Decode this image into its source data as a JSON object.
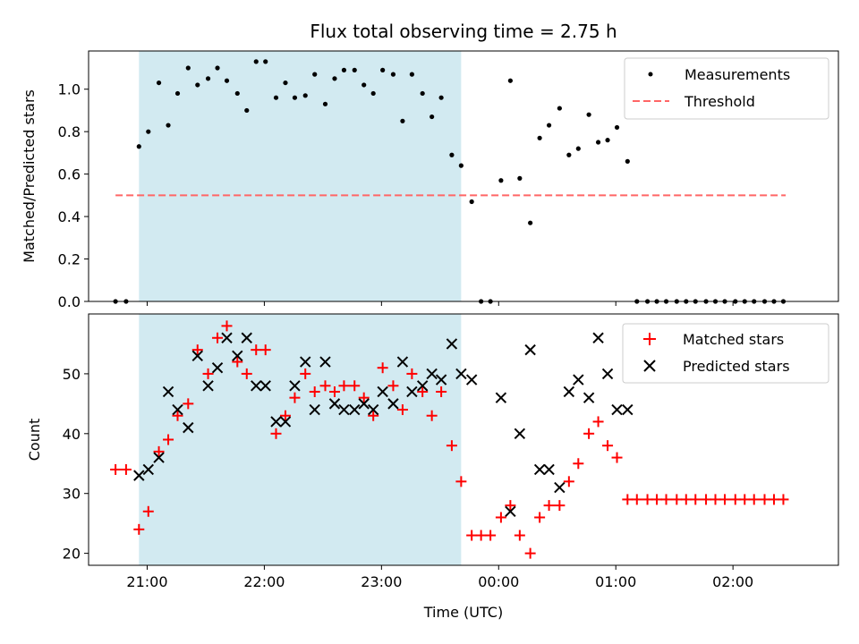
{
  "title": "Flux total observing time = 2.75 h",
  "xlabel": "Time (UTC)",
  "colors": {
    "shade": "#add8e6",
    "measurement": "#000000",
    "threshold": "#ff6666",
    "matched": "#ff0000",
    "predicted": "#000000"
  },
  "chart_data": [
    {
      "type": "scatter",
      "panel": "top",
      "ylabel": "Matched/Predicted stars",
      "ylim": [
        0,
        1.18
      ],
      "yticks": [
        0.0,
        0.2,
        0.4,
        0.6,
        0.8,
        1.0
      ],
      "ytick_labels": [
        "0.0",
        "0.2",
        "0.4",
        "0.6",
        "0.8",
        "1.0"
      ],
      "xlim_hours": [
        20.5,
        26.9
      ],
      "xticks_hours": [
        21,
        22,
        23,
        24,
        25,
        26
      ],
      "xtick_labels": [
        "21:00",
        "22:00",
        "23:00",
        "00:00",
        "01:00",
        "02:00"
      ],
      "shaded_interval_hours": [
        20.93,
        23.68
      ],
      "threshold": 0.5,
      "threshold_x_hours": [
        20.73,
        26.45
      ],
      "legend": [
        "Measurements",
        "Threshold"
      ],
      "legend_position": "upper right",
      "series": [
        {
          "name": "Measurements",
          "points": [
            [
              20.73,
              0.0
            ],
            [
              20.82,
              0.0
            ],
            [
              20.93,
              0.73
            ],
            [
              21.01,
              0.8
            ],
            [
              21.1,
              1.03
            ],
            [
              21.18,
              0.83
            ],
            [
              21.26,
              0.98
            ],
            [
              21.35,
              1.1
            ],
            [
              21.43,
              1.02
            ],
            [
              21.52,
              1.05
            ],
            [
              21.6,
              1.1
            ],
            [
              21.68,
              1.04
            ],
            [
              21.77,
              0.98
            ],
            [
              21.85,
              0.9
            ],
            [
              21.93,
              1.13
            ],
            [
              22.01,
              1.13
            ],
            [
              22.1,
              0.96
            ],
            [
              22.18,
              1.03
            ],
            [
              22.26,
              0.96
            ],
            [
              22.35,
              0.97
            ],
            [
              22.43,
              1.07
            ],
            [
              22.52,
              0.93
            ],
            [
              22.6,
              1.05
            ],
            [
              22.68,
              1.09
            ],
            [
              22.77,
              1.09
            ],
            [
              22.85,
              1.02
            ],
            [
              22.93,
              0.98
            ],
            [
              23.01,
              1.09
            ],
            [
              23.1,
              1.07
            ],
            [
              23.18,
              0.85
            ],
            [
              23.26,
              1.07
            ],
            [
              23.35,
              0.98
            ],
            [
              23.43,
              0.87
            ],
            [
              23.51,
              0.96
            ],
            [
              23.6,
              0.69
            ],
            [
              23.68,
              0.64
            ],
            [
              23.77,
              0.47
            ],
            [
              23.85,
              0.0
            ],
            [
              23.93,
              0.0
            ],
            [
              24.02,
              0.57
            ],
            [
              24.1,
              1.04
            ],
            [
              24.18,
              0.58
            ],
            [
              24.27,
              0.37
            ],
            [
              24.35,
              0.77
            ],
            [
              24.43,
              0.83
            ],
            [
              24.52,
              0.91
            ],
            [
              24.6,
              0.69
            ],
            [
              24.68,
              0.72
            ],
            [
              24.77,
              0.88
            ],
            [
              24.85,
              0.75
            ],
            [
              24.93,
              0.76
            ],
            [
              25.01,
              0.82
            ],
            [
              25.1,
              0.66
            ],
            [
              25.18,
              0.0
            ],
            [
              25.27,
              0.0
            ],
            [
              25.35,
              0.0
            ],
            [
              25.43,
              0.0
            ],
            [
              25.52,
              0.0
            ],
            [
              25.6,
              0.0
            ],
            [
              25.68,
              0.0
            ],
            [
              25.77,
              0.0
            ],
            [
              25.85,
              0.0
            ],
            [
              25.93,
              0.0
            ],
            [
              26.02,
              0.0
            ],
            [
              26.1,
              0.0
            ],
            [
              26.18,
              0.0
            ],
            [
              26.27,
              0.0
            ],
            [
              26.35,
              0.0
            ],
            [
              26.43,
              0.0
            ]
          ]
        }
      ]
    },
    {
      "type": "scatter",
      "panel": "bottom",
      "ylabel": "Count",
      "ylim": [
        18,
        60
      ],
      "yticks": [
        20,
        30,
        40,
        50
      ],
      "ytick_labels": [
        "20",
        "30",
        "40",
        "50"
      ],
      "xlim_hours": [
        20.5,
        26.9
      ],
      "xticks_hours": [
        21,
        22,
        23,
        24,
        25,
        26
      ],
      "xtick_labels": [
        "21:00",
        "22:00",
        "23:00",
        "00:00",
        "01:00",
        "02:00"
      ],
      "shaded_interval_hours": [
        20.93,
        23.68
      ],
      "legend": [
        "Matched stars",
        "Predicted stars"
      ],
      "legend_position": "upper right",
      "series": [
        {
          "name": "Matched stars",
          "marker": "+",
          "points": [
            [
              20.73,
              34
            ],
            [
              20.82,
              34
            ],
            [
              20.93,
              24
            ],
            [
              21.01,
              27
            ],
            [
              21.1,
              37
            ],
            [
              21.18,
              39
            ],
            [
              21.26,
              43
            ],
            [
              21.35,
              45
            ],
            [
              21.43,
              54
            ],
            [
              21.52,
              50
            ],
            [
              21.6,
              56
            ],
            [
              21.68,
              58
            ],
            [
              21.77,
              52
            ],
            [
              21.85,
              50
            ],
            [
              21.93,
              54
            ],
            [
              22.01,
              54
            ],
            [
              22.1,
              40
            ],
            [
              22.18,
              43
            ],
            [
              22.26,
              46
            ],
            [
              22.35,
              50
            ],
            [
              22.43,
              47
            ],
            [
              22.52,
              48
            ],
            [
              22.6,
              47
            ],
            [
              22.68,
              48
            ],
            [
              22.77,
              48
            ],
            [
              22.85,
              46
            ],
            [
              22.93,
              43
            ],
            [
              23.01,
              51
            ],
            [
              23.1,
              48
            ],
            [
              23.18,
              44
            ],
            [
              23.26,
              50
            ],
            [
              23.35,
              47
            ],
            [
              23.43,
              43
            ],
            [
              23.51,
              47
            ],
            [
              23.6,
              38
            ],
            [
              23.68,
              32
            ],
            [
              23.77,
              23
            ],
            [
              23.85,
              23
            ],
            [
              23.93,
              23
            ],
            [
              24.02,
              26
            ],
            [
              24.1,
              28
            ],
            [
              24.18,
              23
            ],
            [
              24.27,
              20
            ],
            [
              24.35,
              26
            ],
            [
              24.43,
              28
            ],
            [
              24.52,
              28
            ],
            [
              24.6,
              32
            ],
            [
              24.68,
              35
            ],
            [
              24.77,
              40
            ],
            [
              24.85,
              42
            ],
            [
              24.93,
              38
            ],
            [
              25.01,
              36
            ],
            [
              25.1,
              29
            ],
            [
              25.18,
              29
            ],
            [
              25.27,
              29
            ],
            [
              25.35,
              29
            ],
            [
              25.43,
              29
            ],
            [
              25.52,
              29
            ],
            [
              25.6,
              29
            ],
            [
              25.68,
              29
            ],
            [
              25.77,
              29
            ],
            [
              25.85,
              29
            ],
            [
              25.93,
              29
            ],
            [
              26.02,
              29
            ],
            [
              26.1,
              29
            ],
            [
              26.18,
              29
            ],
            [
              26.27,
              29
            ],
            [
              26.35,
              29
            ],
            [
              26.43,
              29
            ]
          ]
        },
        {
          "name": "Predicted stars",
          "marker": "x",
          "points": [
            [
              20.93,
              33
            ],
            [
              21.01,
              34
            ],
            [
              21.1,
              36
            ],
            [
              21.18,
              47
            ],
            [
              21.26,
              44
            ],
            [
              21.35,
              41
            ],
            [
              21.43,
              53
            ],
            [
              21.52,
              48
            ],
            [
              21.6,
              51
            ],
            [
              21.68,
              56
            ],
            [
              21.77,
              53
            ],
            [
              21.85,
              56
            ],
            [
              21.93,
              48
            ],
            [
              22.01,
              48
            ],
            [
              22.1,
              42
            ],
            [
              22.18,
              42
            ],
            [
              22.26,
              48
            ],
            [
              22.35,
              52
            ],
            [
              22.43,
              44
            ],
            [
              22.52,
              52
            ],
            [
              22.6,
              45
            ],
            [
              22.68,
              44
            ],
            [
              22.77,
              44
            ],
            [
              22.85,
              45
            ],
            [
              22.93,
              44
            ],
            [
              23.01,
              47
            ],
            [
              23.1,
              45
            ],
            [
              23.18,
              52
            ],
            [
              23.26,
              47
            ],
            [
              23.35,
              48
            ],
            [
              23.43,
              50
            ],
            [
              23.51,
              49
            ],
            [
              23.6,
              55
            ],
            [
              23.68,
              50
            ],
            [
              23.77,
              49
            ],
            [
              24.02,
              46
            ],
            [
              24.1,
              27
            ],
            [
              24.18,
              40
            ],
            [
              24.27,
              54
            ],
            [
              24.35,
              34
            ],
            [
              24.43,
              34
            ],
            [
              24.52,
              31
            ],
            [
              24.6,
              47
            ],
            [
              24.68,
              49
            ],
            [
              24.77,
              46
            ],
            [
              24.85,
              56
            ],
            [
              24.93,
              50
            ],
            [
              25.01,
              44
            ],
            [
              25.1,
              44
            ]
          ]
        }
      ]
    }
  ]
}
